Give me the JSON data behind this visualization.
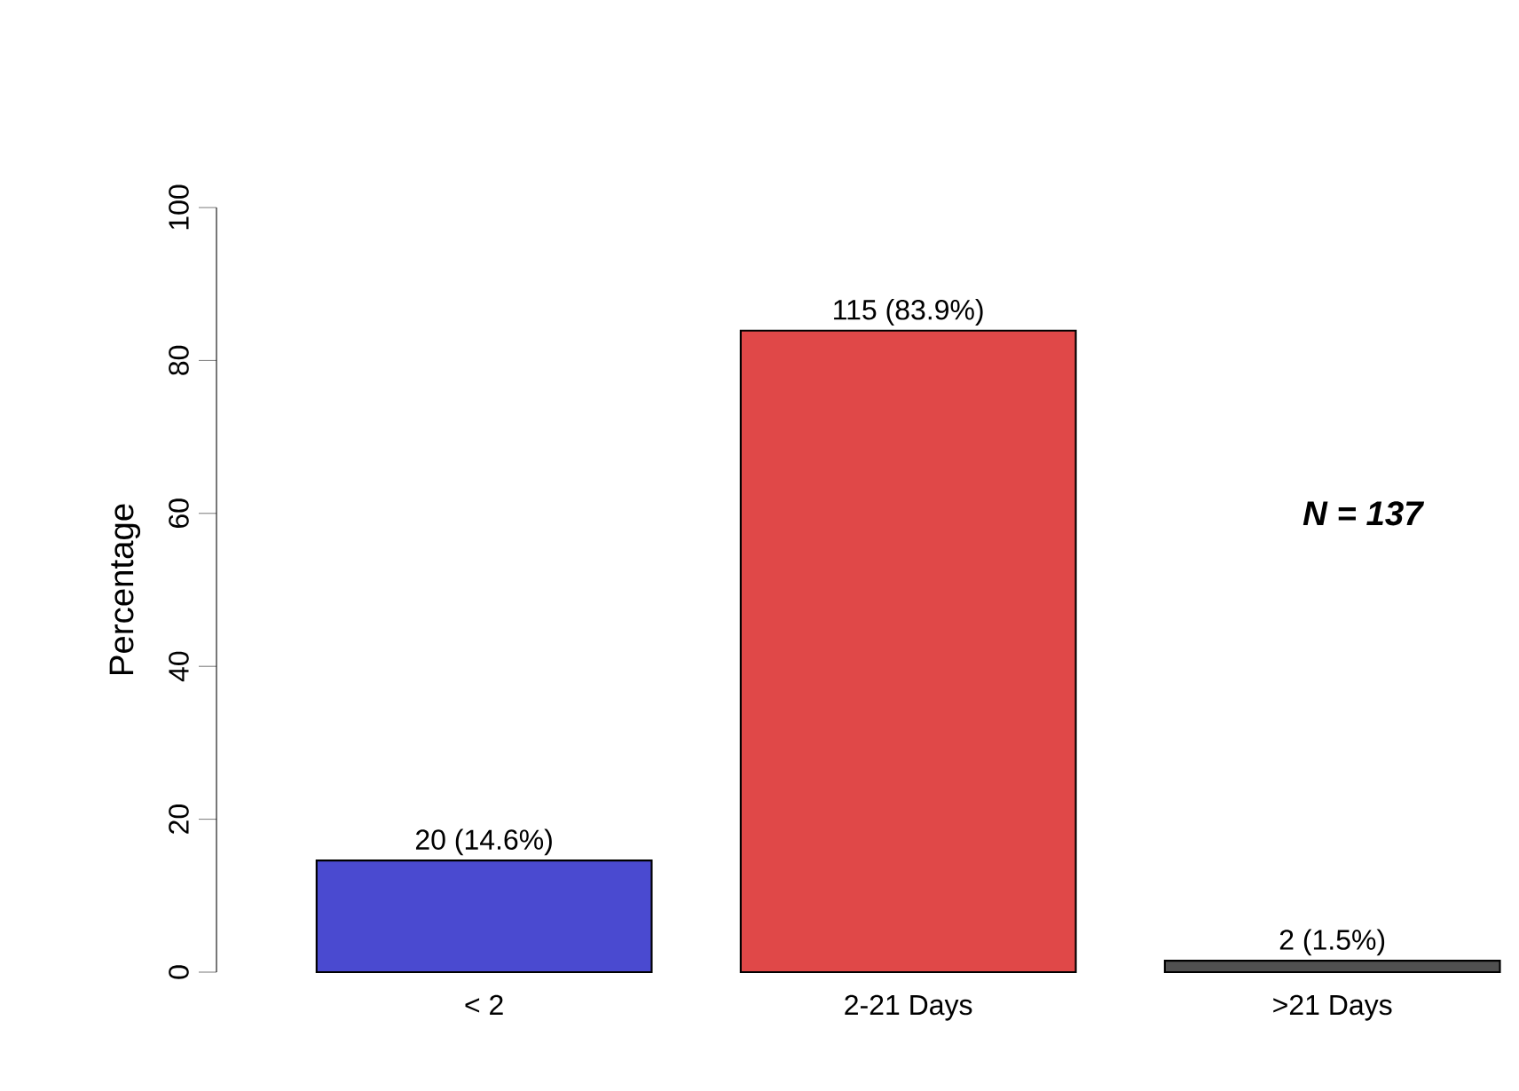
{
  "chart_data": {
    "type": "bar",
    "ylabel": "Percentage",
    "categories": [
      "< 2",
      "2-21 Days",
      ">21 Days"
    ],
    "values": [
      14.6,
      83.9,
      1.5
    ],
    "value_labels": [
      "20 (14.6%)",
      "115 (83.9%)",
      "2 (1.5%)"
    ],
    "colors": [
      "#4a4ad0",
      "#e04848",
      "#505050"
    ],
    "ylim": [
      0,
      100
    ],
    "yticks": [
      0,
      20,
      40,
      60,
      80,
      100
    ],
    "annotations": [
      "N = 137"
    ]
  }
}
